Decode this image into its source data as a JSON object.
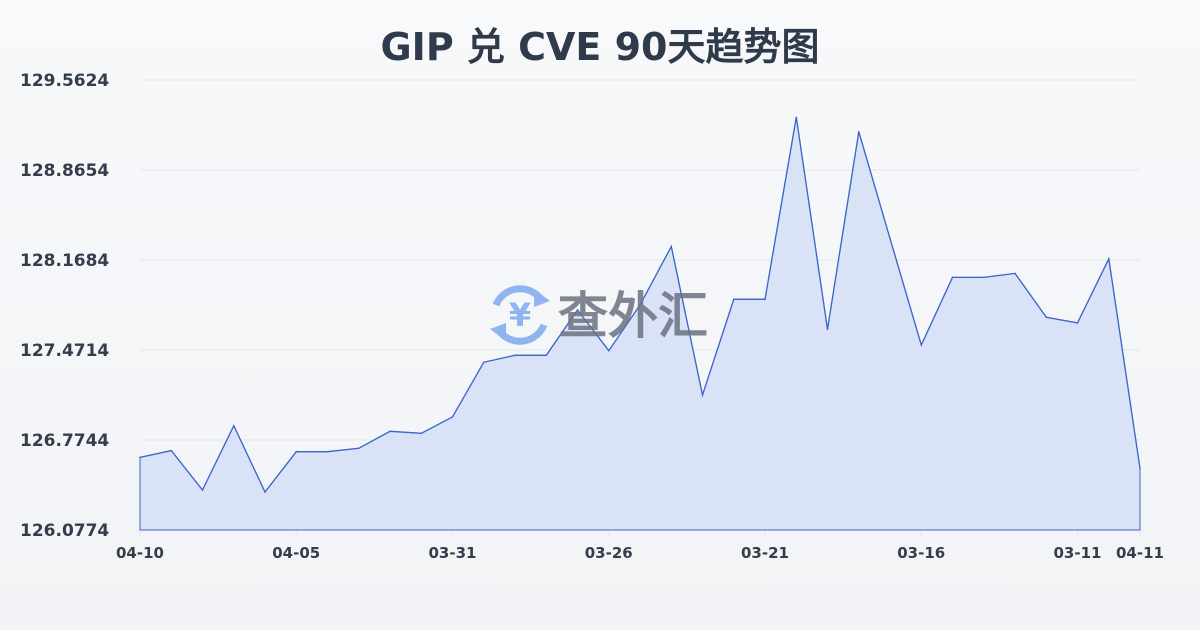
{
  "chart_data": {
    "type": "area",
    "title": "GIP 兑 CVE 90天趋势图",
    "xlabel": "",
    "ylabel": "",
    "ylim": [
      126.0774,
      129.5624
    ],
    "y_ticks": [
      "126.0774",
      "126.7744",
      "127.4714",
      "128.1684",
      "128.8654",
      "129.5624"
    ],
    "x_ticks": [
      {
        "index": 0,
        "label": "04-10"
      },
      {
        "index": 5,
        "label": "04-05"
      },
      {
        "index": 10,
        "label": "03-31"
      },
      {
        "index": 15,
        "label": "03-26"
      },
      {
        "index": 20,
        "label": "03-21"
      },
      {
        "index": 25,
        "label": "03-16"
      },
      {
        "index": 30,
        "label": "03-11"
      },
      {
        "index": 32,
        "label": "04-11"
      }
    ],
    "grid": true,
    "values": [
      126.64,
      126.692,
      126.387,
      126.885,
      126.372,
      126.684,
      126.684,
      126.71,
      126.842,
      126.826,
      126.953,
      127.376,
      127.43,
      127.43,
      127.781,
      127.466,
      127.82,
      128.273,
      127.123,
      127.864,
      127.864,
      129.274,
      127.632,
      129.162,
      128.336,
      127.51,
      128.034,
      128.034,
      128.065,
      127.725,
      127.681,
      128.178,
      126.555
    ],
    "colors": {
      "line": "#3a67c9",
      "fill": "#d6e0f5",
      "grid": "#e3e6ea"
    }
  },
  "watermark": {
    "text": "查外汇",
    "icon": "yuan-exchange-icon",
    "icon_color": "#8fb4ef"
  }
}
